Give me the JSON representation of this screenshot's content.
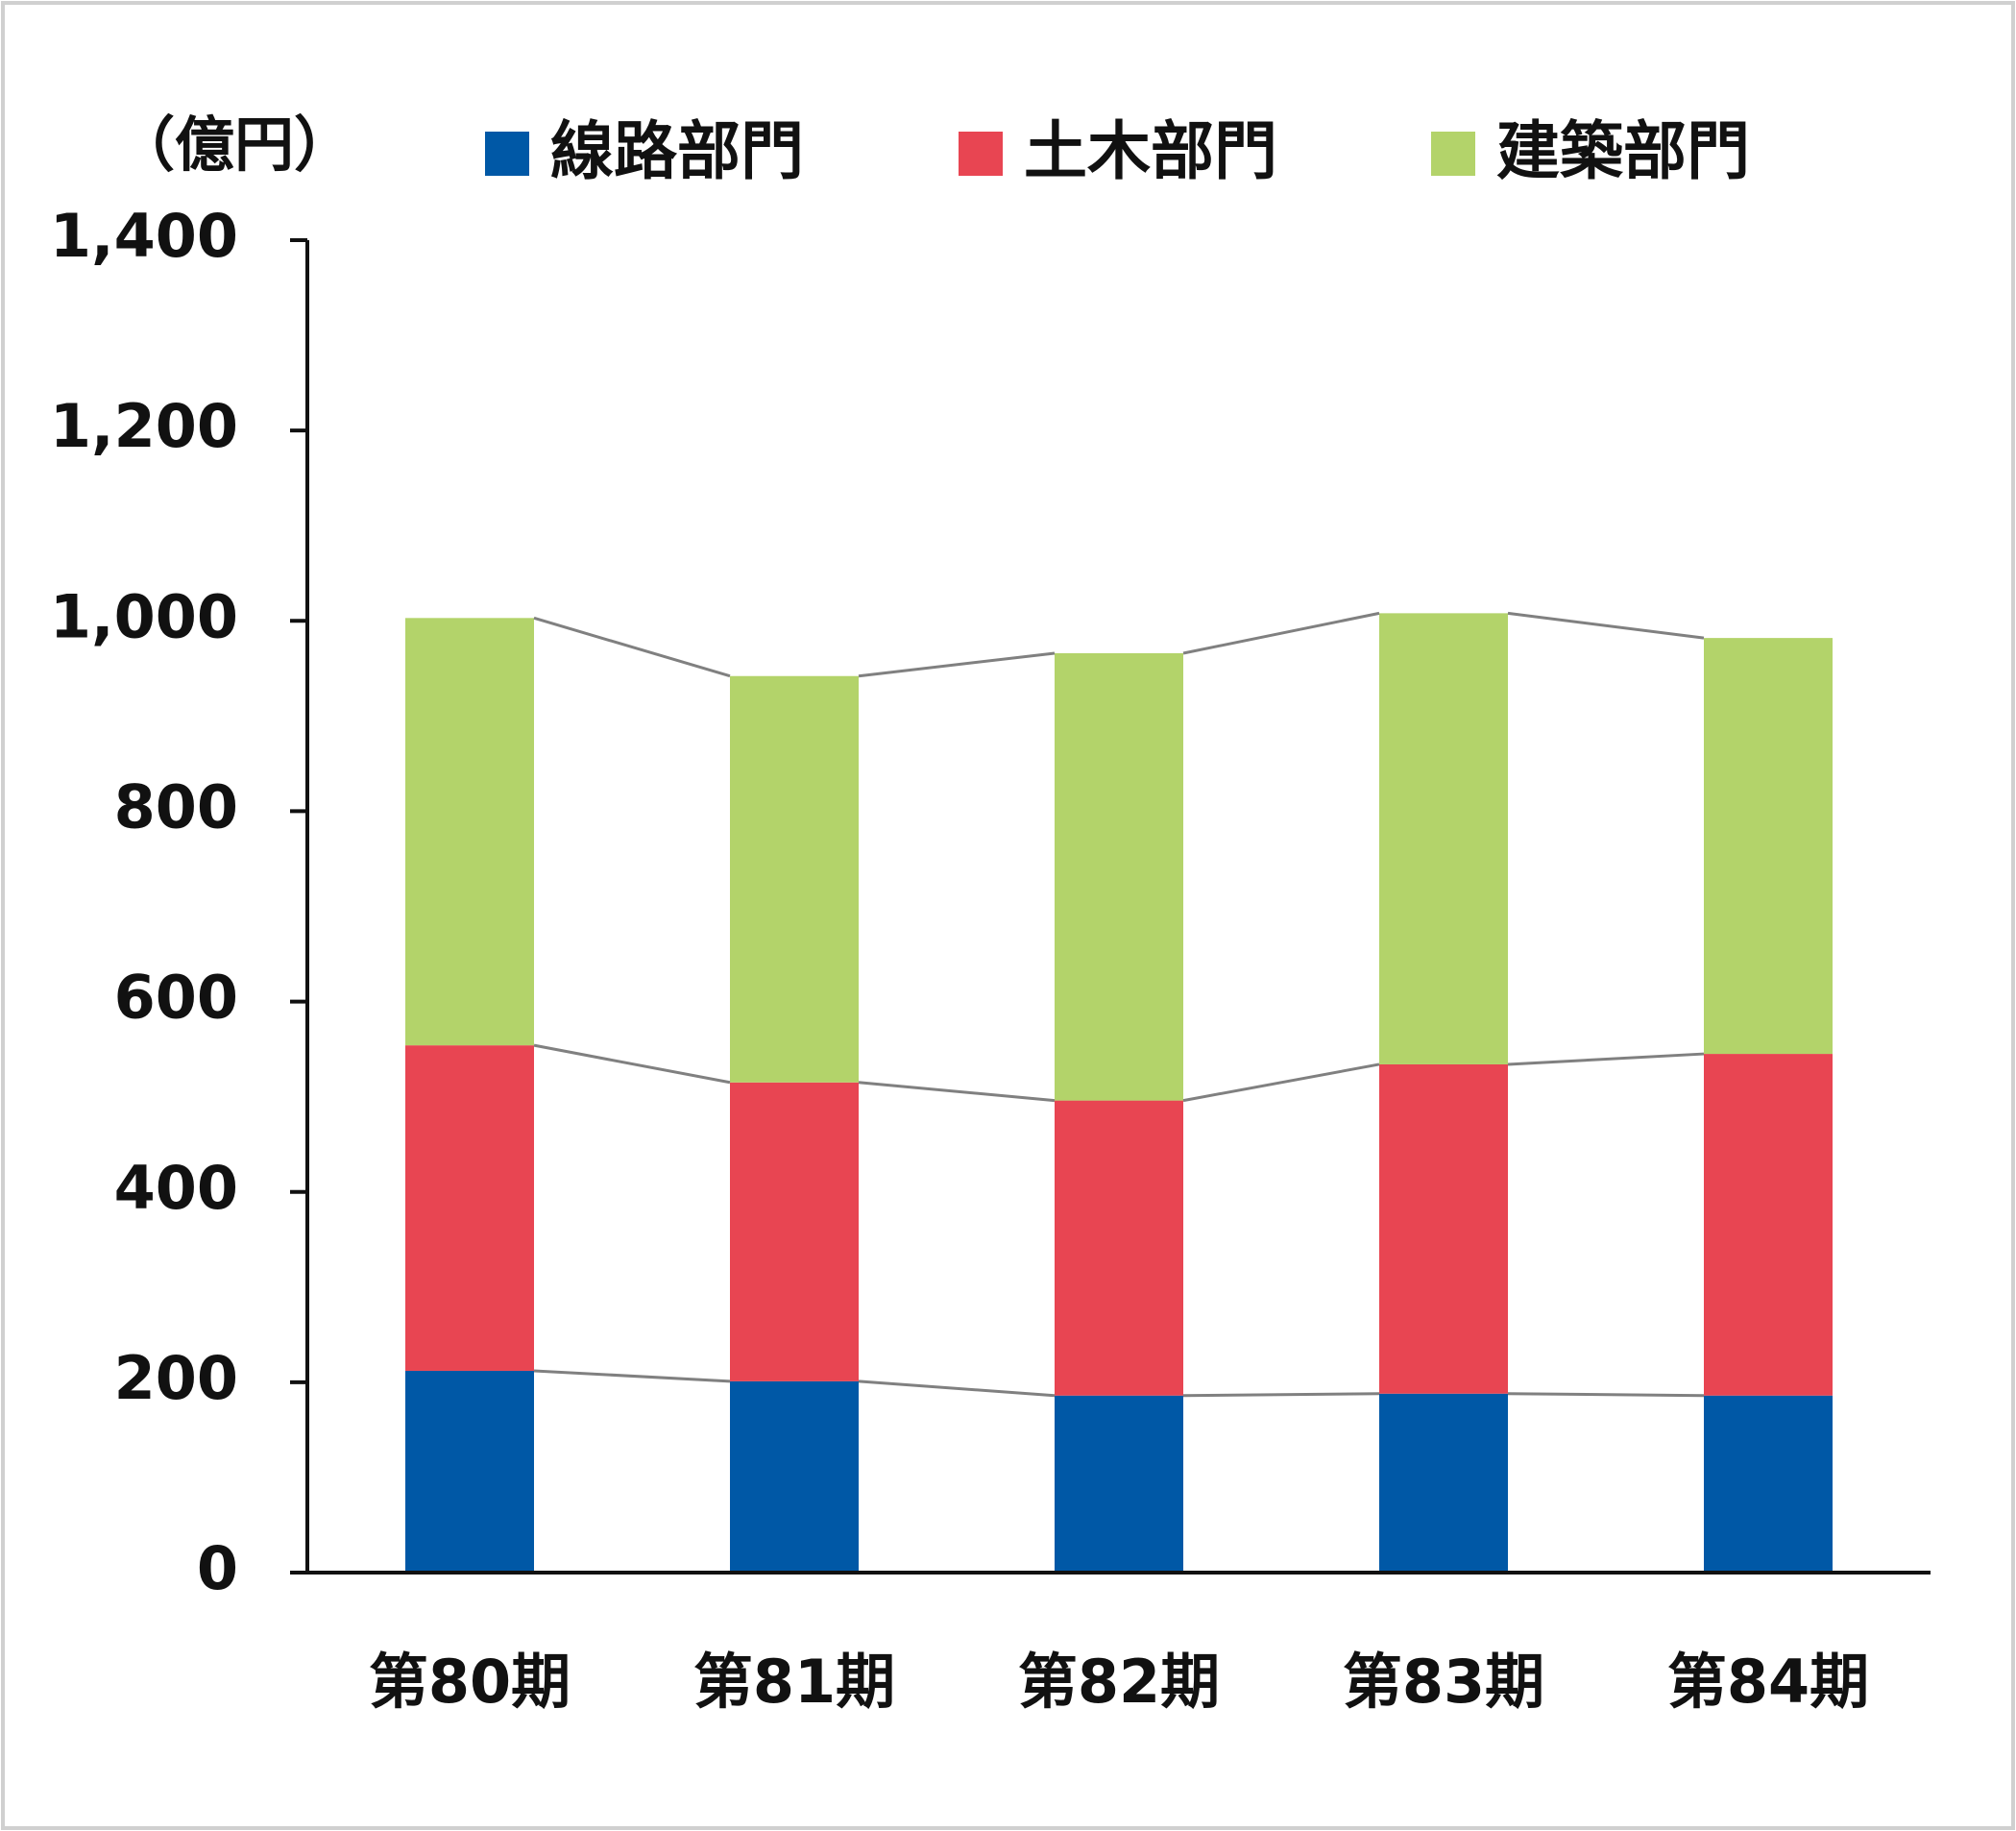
{
  "chart_data": {
    "type": "stacked_bar",
    "unit_label": "（億円）",
    "categories": [
      "第80期",
      "第81期",
      "第82期",
      "第83期",
      "第84期"
    ],
    "series": [
      {
        "name": "線路部門",
        "color": "#0058a6",
        "values": [
          212,
          201,
          186,
          188,
          186
        ]
      },
      {
        "name": "土木部門",
        "color": "#e84552",
        "values": [
          342,
          314,
          310,
          346,
          359
        ]
      },
      {
        "name": "建築部門",
        "color": "#b3d36a",
        "values": [
          449,
          427,
          470,
          474,
          437
        ]
      }
    ],
    "ylim": [
      0,
      1400
    ],
    "yticks": [
      0,
      200,
      400,
      600,
      800,
      {
        "value": 1000,
        "label": "1,000"
      },
      {
        "value": 1200,
        "label": "1,200"
      },
      {
        "value": 1400,
        "label": "1,400"
      }
    ],
    "connector_color": "#808080"
  }
}
